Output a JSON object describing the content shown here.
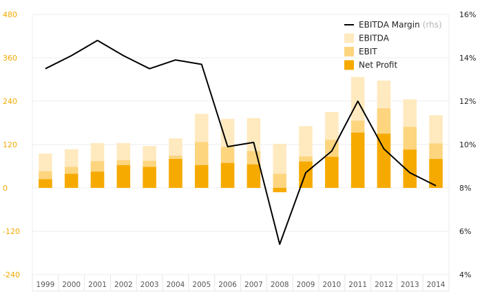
{
  "chart_data": {
    "type": "bar",
    "categories": [
      "1999",
      "2000",
      "2001",
      "2002",
      "2003",
      "2004",
      "2005",
      "2006",
      "2007",
      "2008",
      "2009",
      "2010",
      "2011",
      "2012",
      "2013",
      "2014"
    ],
    "series": [
      {
        "name": "EBITDA",
        "kind": "bar",
        "axis": "left",
        "color": "#ffe9bf",
        "values": [
          95,
          107,
          124,
          124,
          116,
          137,
          205,
          191,
          193,
          122,
          171,
          210,
          307,
          297,
          245,
          201
        ]
      },
      {
        "name": "EBIT",
        "kind": "bar",
        "axis": "left",
        "color": "#fdd57f",
        "values": [
          46,
          58,
          74,
          77,
          75,
          89,
          127,
          113,
          102,
          39,
          87,
          133,
          186,
          220,
          169,
          123
        ]
      },
      {
        "name": "Net Profit",
        "kind": "bar",
        "axis": "left",
        "color": "#f6aa00",
        "values": [
          24,
          39,
          45,
          63,
          58,
          80,
          63,
          69,
          65,
          -12,
          73,
          86,
          153,
          150,
          106,
          80
        ]
      },
      {
        "name": "EBITDA Margin",
        "name_suffix": "(rhs)",
        "kind": "line",
        "axis": "right",
        "color": "#000000",
        "values": [
          13.5,
          14.1,
          14.8,
          14.1,
          13.5,
          13.9,
          13.7,
          9.9,
          10.1,
          5.4,
          8.7,
          9.7,
          12.0,
          9.8,
          8.7,
          8.1
        ]
      }
    ],
    "y_left": {
      "ticks": [
        "480",
        "360",
        "240",
        "120",
        "0",
        "-120",
        "-240"
      ],
      "range": [
        -240,
        480
      ],
      "color": "#f2a900"
    },
    "y_right": {
      "ticks": [
        "16%",
        "14%",
        "12%",
        "10%",
        "8%",
        "6%",
        "4%"
      ],
      "range": [
        4,
        16
      ],
      "color": "#222222"
    },
    "grid": true,
    "legend_position": "top-right",
    "title": "",
    "xlabel": "",
    "ylabel": ""
  }
}
